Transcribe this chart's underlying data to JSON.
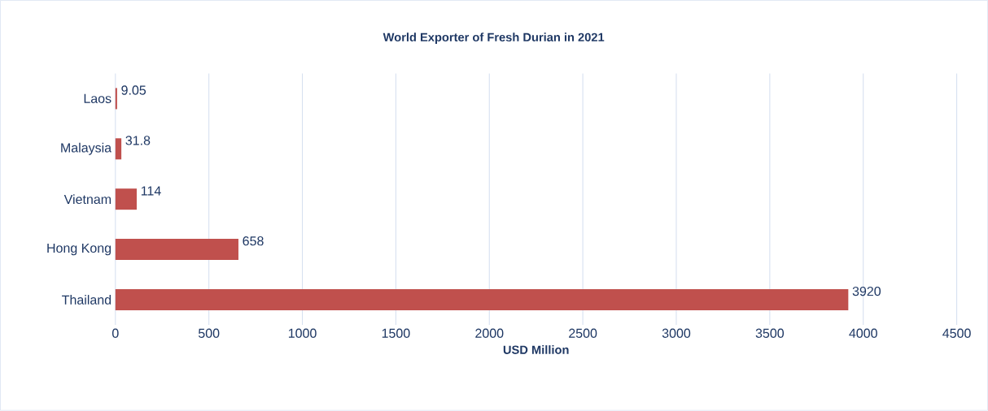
{
  "chart_data": {
    "type": "bar",
    "orientation": "horizontal",
    "title": "World Exporter of Fresh Durian in 2021",
    "xlabel": "USD Million",
    "categories": [
      "Laos",
      "Malaysia",
      "Vietnam",
      "Hong Kong",
      "Thailand"
    ],
    "values": [
      9.05,
      31.8,
      114,
      658,
      3920
    ],
    "color": "#c0504d",
    "xlim": [
      0,
      4500
    ],
    "xticks": [
      0,
      500,
      1000,
      1500,
      2000,
      2500,
      3000,
      3500,
      4000,
      4500
    ],
    "grid": "x",
    "data_labels": true
  }
}
